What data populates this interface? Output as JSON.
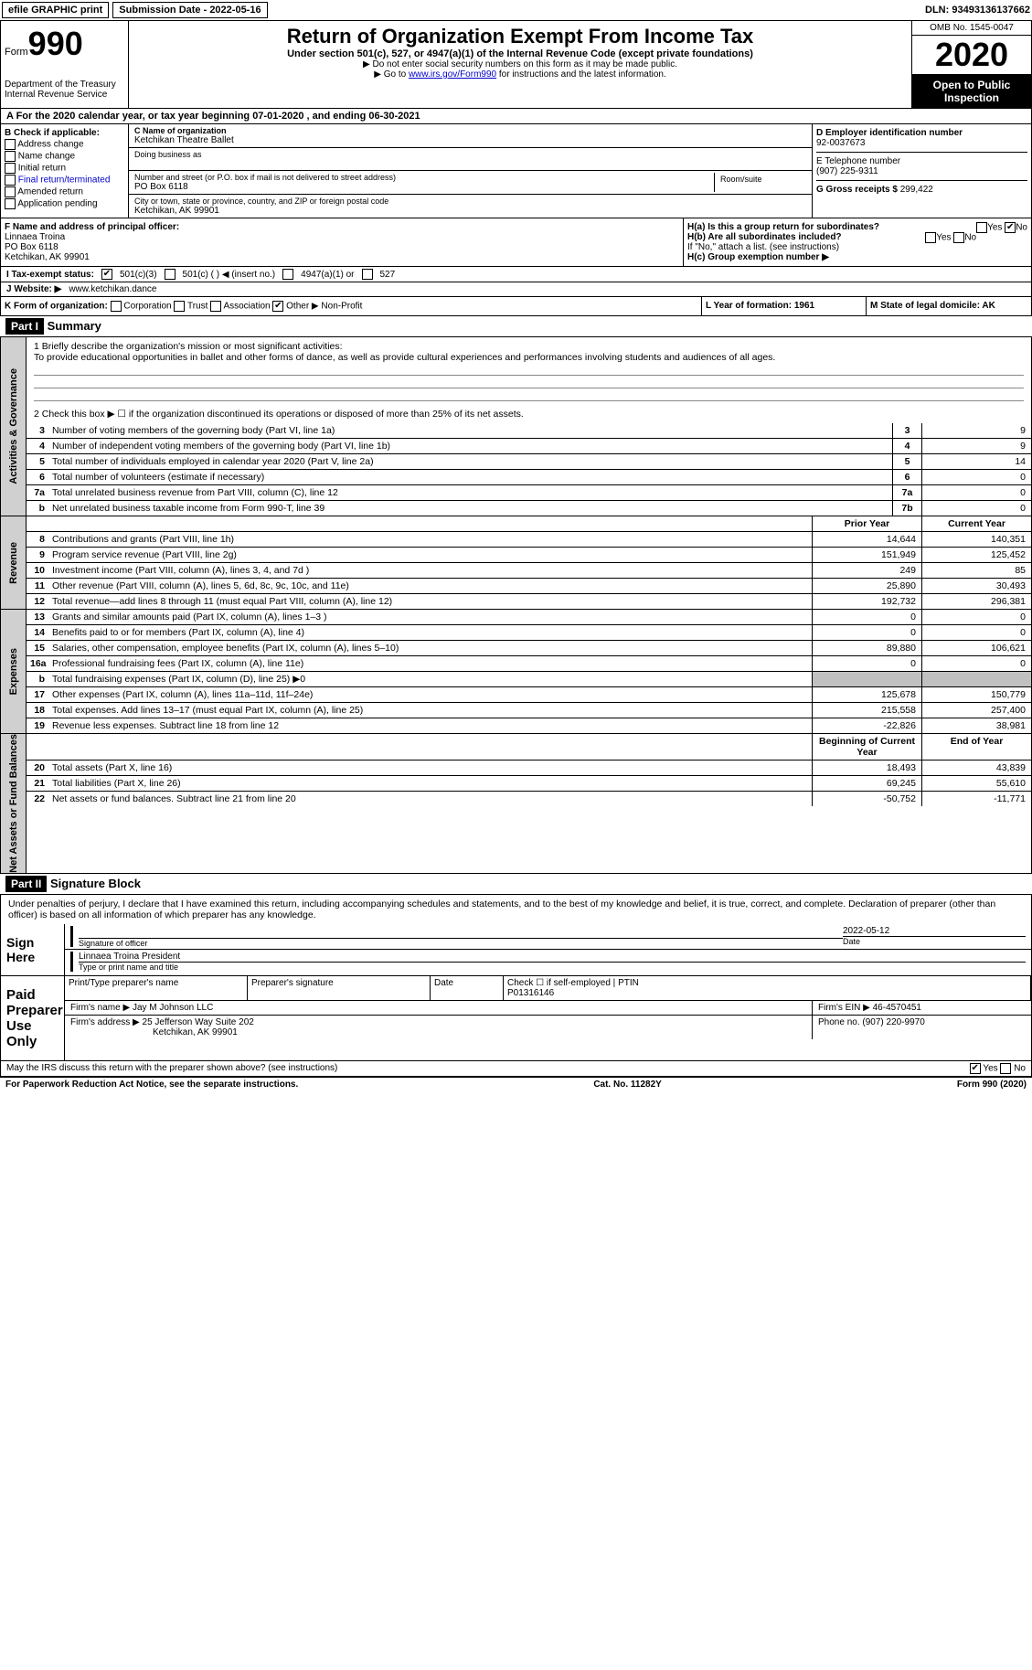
{
  "topbar": {
    "efile": "efile GRAPHIC print",
    "submission": "Submission Date - 2022-05-16",
    "dln": "DLN: 93493136137662"
  },
  "header": {
    "form_label": "Form",
    "form_number": "990",
    "dept1": "Department of the Treasury",
    "dept2": "Internal Revenue Service",
    "title": "Return of Organization Exempt From Income Tax",
    "sub1": "Under section 501(c), 527, or 4947(a)(1) of the Internal Revenue Code (except private foundations)",
    "sub2": "▶ Do not enter social security numbers on this form as it may be made public.",
    "sub3_pre": "▶ Go to ",
    "sub3_link": "www.irs.gov/Form990",
    "sub3_post": " for instructions and the latest information.",
    "omb": "OMB No. 1545-0047",
    "year": "2020",
    "inspect": "Open to Public Inspection"
  },
  "row_a": "A For the 2020 calendar year, or tax year beginning 07-01-2020    , and ending 06-30-2021",
  "col_b": {
    "title": "B Check if applicable:",
    "items": [
      "Address change",
      "Name change",
      "Initial return",
      "Final return/terminated",
      "Amended return",
      "Application pending"
    ]
  },
  "col_c": {
    "name_label": "C Name of organization",
    "name": "Ketchikan Theatre Ballet",
    "dba_label": "Doing business as",
    "addr_label": "Number and street (or P.O. box if mail is not delivered to street address)",
    "addr": "PO Box 6118",
    "room_label": "Room/suite",
    "city_label": "City or town, state or province, country, and ZIP or foreign postal code",
    "city": "Ketchikan, AK  99901"
  },
  "col_d": {
    "ein_label": "D Employer identification number",
    "ein": "92-0037673",
    "phone_label": "E Telephone number",
    "phone": "(907) 225-9311",
    "gross_label": "G Gross receipts $ ",
    "gross": "299,422"
  },
  "row_f": {
    "label": "F  Name and address of principal officer:",
    "name": "Linnaea Troina",
    "addr1": "PO Box 6118",
    "addr2": "Ketchikan, AK  99901"
  },
  "row_h": {
    "ha_label": "H(a)  Is this a group return for subordinates?",
    "ha_no": "No",
    "hb_label": "H(b)  Are all subordinates included?",
    "hb_note": "If \"No,\" attach a list. (see instructions)",
    "hc_label": "H(c)  Group exemption number ▶"
  },
  "tax": {
    "label": "I   Tax-exempt status:",
    "o1": "501(c)(3)",
    "o2": "501(c) (  ) ◀ (insert no.)",
    "o3": "4947(a)(1) or",
    "o4": "527"
  },
  "website": {
    "label": "J   Website: ▶  ",
    "val": "www.ketchikan.dance"
  },
  "row_k": {
    "label": "K Form of organization:",
    "corp": "Corporation",
    "trust": "Trust",
    "assoc": "Association",
    "other": "Other ▶",
    "other_val": "Non-Profit",
    "l": "L Year of formation: 1961",
    "m": "M State of legal domicile: AK"
  },
  "part1": {
    "header": "Part I",
    "title": "Summary",
    "q1_label": "1  Briefly describe the organization's mission or most significant activities:",
    "q1_text": "To provide educational opportunities in ballet and other forms of dance, as well as provide cultural experiences and performances involving students and audiences of all ages.",
    "q2": "2   Check this box ▶ ☐  if the organization discontinued its operations or disposed of more than 25% of its net assets.",
    "side_gov": "Activities & Governance",
    "side_rev": "Revenue",
    "side_exp": "Expenses",
    "side_net": "Net Assets or Fund Balances",
    "hdr_prior": "Prior Year",
    "hdr_curr": "Current Year",
    "hdr_beg": "Beginning of Current Year",
    "hdr_end": "End of Year",
    "lines_gov": [
      {
        "n": "3",
        "d": "Number of voting members of the governing body (Part VI, line 1a)",
        "box": "3",
        "v": "9"
      },
      {
        "n": "4",
        "d": "Number of independent voting members of the governing body (Part VI, line 1b)",
        "box": "4",
        "v": "9"
      },
      {
        "n": "5",
        "d": "Total number of individuals employed in calendar year 2020 (Part V, line 2a)",
        "box": "5",
        "v": "14"
      },
      {
        "n": "6",
        "d": "Total number of volunteers (estimate if necessary)",
        "box": "6",
        "v": "0"
      },
      {
        "n": "7a",
        "d": "Total unrelated business revenue from Part VIII, column (C), line 12",
        "box": "7a",
        "v": "0"
      },
      {
        "n": "b",
        "d": "Net unrelated business taxable income from Form 990-T, line 39",
        "box": "7b",
        "v": "0"
      }
    ],
    "lines_rev": [
      {
        "n": "8",
        "d": "Contributions and grants (Part VIII, line 1h)",
        "p": "14,644",
        "c": "140,351"
      },
      {
        "n": "9",
        "d": "Program service revenue (Part VIII, line 2g)",
        "p": "151,949",
        "c": "125,452"
      },
      {
        "n": "10",
        "d": "Investment income (Part VIII, column (A), lines 3, 4, and 7d )",
        "p": "249",
        "c": "85"
      },
      {
        "n": "11",
        "d": "Other revenue (Part VIII, column (A), lines 5, 6d, 8c, 9c, 10c, and 11e)",
        "p": "25,890",
        "c": "30,493"
      },
      {
        "n": "12",
        "d": "Total revenue—add lines 8 through 11 (must equal Part VIII, column (A), line 12)",
        "p": "192,732",
        "c": "296,381"
      }
    ],
    "lines_exp": [
      {
        "n": "13",
        "d": "Grants and similar amounts paid (Part IX, column (A), lines 1–3 )",
        "p": "0",
        "c": "0"
      },
      {
        "n": "14",
        "d": "Benefits paid to or for members (Part IX, column (A), line 4)",
        "p": "0",
        "c": "0"
      },
      {
        "n": "15",
        "d": "Salaries, other compensation, employee benefits (Part IX, column (A), lines 5–10)",
        "p": "89,880",
        "c": "106,621"
      },
      {
        "n": "16a",
        "d": "Professional fundraising fees (Part IX, column (A), line 11e)",
        "p": "0",
        "c": "0"
      },
      {
        "n": "b",
        "d": "Total fundraising expenses (Part IX, column (D), line 25) ▶0",
        "p": "",
        "c": "",
        "shaded": true
      },
      {
        "n": "17",
        "d": "Other expenses (Part IX, column (A), lines 11a–11d, 11f–24e)",
        "p": "125,678",
        "c": "150,779"
      },
      {
        "n": "18",
        "d": "Total expenses. Add lines 13–17 (must equal Part IX, column (A), line 25)",
        "p": "215,558",
        "c": "257,400"
      },
      {
        "n": "19",
        "d": "Revenue less expenses. Subtract line 18 from line 12",
        "p": "-22,826",
        "c": "38,981"
      }
    ],
    "lines_net": [
      {
        "n": "20",
        "d": "Total assets (Part X, line 16)",
        "p": "18,493",
        "c": "43,839"
      },
      {
        "n": "21",
        "d": "Total liabilities (Part X, line 26)",
        "p": "69,245",
        "c": "55,610"
      },
      {
        "n": "22",
        "d": "Net assets or fund balances. Subtract line 21 from line 20",
        "p": "-50,752",
        "c": "-11,771"
      }
    ]
  },
  "part2": {
    "header": "Part II",
    "title": "Signature Block",
    "decl": "Under penalties of perjury, I declare that I have examined this return, including accompanying schedules and statements, and to the best of my knowledge and belief, it is true, correct, and complete. Declaration of preparer (other than officer) is based on all information of which preparer has any knowledge."
  },
  "sign": {
    "left": "Sign Here",
    "sig_label": "Signature of officer",
    "date": "2022-05-12",
    "date_label": "Date",
    "name": "Linnaea Troina  President",
    "name_label": "Type or print name and title"
  },
  "prep": {
    "left": "Paid Preparer Use Only",
    "h1": "Print/Type preparer's name",
    "h2": "Preparer's signature",
    "h3": "Date",
    "h4a": "Check ☐ if self-employed",
    "h4b": "PTIN",
    "ptin": "P01316146",
    "firm_label": "Firm's name    ▶",
    "firm": "Jay M Johnson LLC",
    "ein_label": "Firm's EIN ▶",
    "ein": "46-4570451",
    "addr_label": "Firm's address ▶",
    "addr1": "25 Jefferson Way Suite 202",
    "addr2": "Ketchikan, AK  99901",
    "phone_label": "Phone no.",
    "phone": "(907) 220-9970"
  },
  "discuss": {
    "q": "May the IRS discuss this return with the preparer shown above? (see instructions)",
    "yes": "Yes",
    "no": "No"
  },
  "footer": {
    "left": "For Paperwork Reduction Act Notice, see the separate instructions.",
    "mid": "Cat. No. 11282Y",
    "right": "Form 990 (2020)"
  }
}
